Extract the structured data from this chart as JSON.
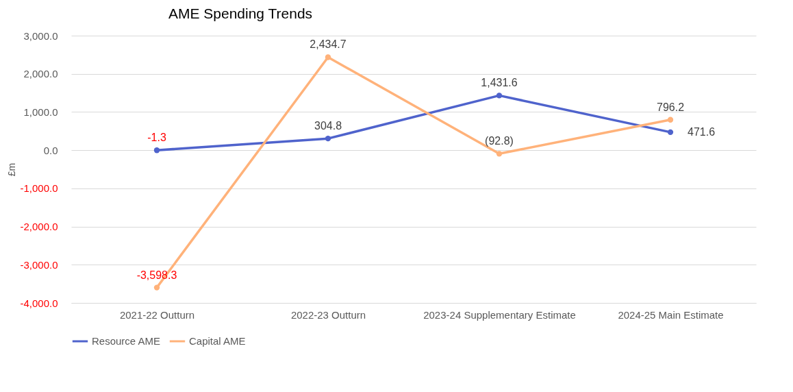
{
  "chart_data": {
    "type": "line",
    "title": "AME Spending Trends",
    "ylabel": "£m",
    "categories": [
      "2021-22 Outturn",
      "2022-23 Outturn",
      "2023-24 Supplementary Estimate",
      "2024-25 Main Estimate"
    ],
    "series": [
      {
        "name": "Resource AME",
        "color": "#4f63cc",
        "values": [
          -1.3,
          304.8,
          1431.6,
          471.6
        ],
        "value_labels": [
          "-1.3",
          "304.8",
          "1,431.6",
          "471.6"
        ]
      },
      {
        "name": "Capital AME",
        "color": "#ffb27a",
        "values": [
          -3598.3,
          2434.7,
          -92.8,
          796.2
        ],
        "value_labels": [
          "-3,598.3",
          "2,434.7",
          "(92.8)",
          "796.2"
        ]
      }
    ],
    "ylim": [
      -4000,
      3000
    ],
    "yticks": [
      {
        "value": -4000,
        "label": "-4,000.0"
      },
      {
        "value": -3000,
        "label": "-3,000.0"
      },
      {
        "value": -2000,
        "label": "-2,000.0"
      },
      {
        "value": -1000,
        "label": "-1,000.0"
      },
      {
        "value": 0,
        "label": "0.0"
      },
      {
        "value": 1000,
        "label": "1,000.0"
      },
      {
        "value": 2000,
        "label": "2,000.0"
      },
      {
        "value": 3000,
        "label": "3,000.0"
      }
    ],
    "grid": "y",
    "legend": "bottom",
    "marker": "circle",
    "line_style": "solid"
  }
}
